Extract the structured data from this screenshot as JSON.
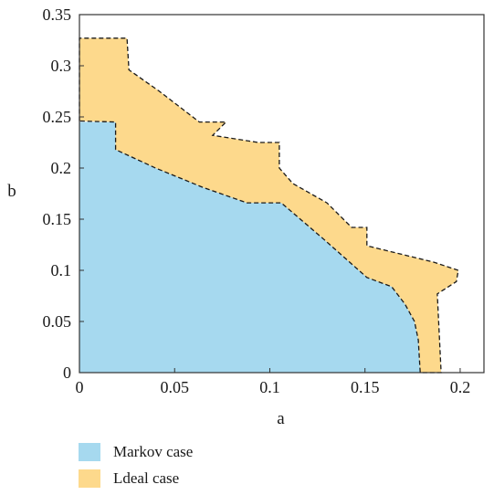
{
  "chart_data": {
    "type": "area",
    "title": "",
    "xlabel": "a",
    "ylabel": "b",
    "xlim": [
      0,
      0.2125
    ],
    "ylim": [
      0,
      0.35
    ],
    "xticks": [
      0,
      0.05,
      0.1,
      0.15,
      0.2
    ],
    "xtick_labels": [
      "0",
      "0.05",
      "0.1",
      "0.15",
      "0.2"
    ],
    "yticks": [
      0,
      0.05,
      0.1,
      0.15,
      0.2,
      0.25,
      0.3,
      0.35
    ],
    "ytick_labels": [
      "0",
      "0.05",
      "0.1",
      "0.15",
      "0.2",
      "0.25",
      "0.3",
      "0.35"
    ],
    "grid": false,
    "legend_position": "bottom-left below plot",
    "series": [
      {
        "name": "Markov case",
        "color": "#a6d9ef",
        "border": "none",
        "points": [
          [
            0,
            0
          ],
          [
            0,
            0.245
          ],
          [
            0.019,
            0.245
          ],
          [
            0.019,
            0.218
          ],
          [
            0.04,
            0.2
          ],
          [
            0.065,
            0.181
          ],
          [
            0.088,
            0.166
          ],
          [
            0.106,
            0.166
          ],
          [
            0.128,
            0.131
          ],
          [
            0.151,
            0.093
          ],
          [
            0.164,
            0.084
          ],
          [
            0.171,
            0.067
          ],
          [
            0.176,
            0.05
          ],
          [
            0.178,
            0.032
          ],
          [
            0.179,
            0
          ],
          [
            0,
            0
          ]
        ]
      },
      {
        "name": "Ldeal case",
        "color": "#fdd98c",
        "border": "dashed",
        "points": [
          [
            0,
            0.246
          ],
          [
            0,
            0.327
          ],
          [
            0.025,
            0.327
          ],
          [
            0.026,
            0.296
          ],
          [
            0.042,
            0.275
          ],
          [
            0.063,
            0.245
          ],
          [
            0.073,
            0.245
          ],
          [
            0.077,
            0.245
          ],
          [
            0.07,
            0.232
          ],
          [
            0.094,
            0.225
          ],
          [
            0.105,
            0.225
          ],
          [
            0.105,
            0.2
          ],
          [
            0.112,
            0.185
          ],
          [
            0.13,
            0.166
          ],
          [
            0.143,
            0.142
          ],
          [
            0.151,
            0.142
          ],
          [
            0.151,
            0.124
          ],
          [
            0.186,
            0.108
          ],
          [
            0.199,
            0.1
          ],
          [
            0.198,
            0.089
          ],
          [
            0.188,
            0.077
          ],
          [
            0.19,
            0
          ],
          [
            0.179,
            0
          ],
          [
            0.178,
            0.032
          ],
          [
            0.176,
            0.05
          ],
          [
            0.171,
            0.067
          ],
          [
            0.164,
            0.084
          ],
          [
            0.151,
            0.093
          ],
          [
            0.128,
            0.131
          ],
          [
            0.106,
            0.166
          ],
          [
            0.088,
            0.166
          ],
          [
            0.065,
            0.181
          ],
          [
            0.04,
            0.2
          ],
          [
            0.019,
            0.218
          ],
          [
            0.019,
            0.245
          ],
          [
            0,
            0.246
          ]
        ]
      }
    ],
    "legend": [
      {
        "label": "Markov case",
        "color": "#a6d9ef"
      },
      {
        "label": "Ldeal case",
        "color": "#fdd98c"
      }
    ]
  }
}
